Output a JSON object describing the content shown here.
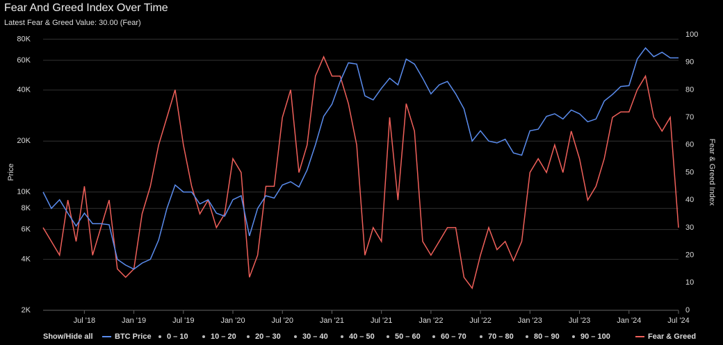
{
  "chart_data": {
    "type": "line",
    "title": "Fear And Greed Index Over Time",
    "subtitle": "Latest Fear & Greed Value: 30.00 (Fear)",
    "y_label": "Price",
    "y2_label": "Fear & Greed Index",
    "legend": {
      "toggle": "Show/Hide all",
      "ranges": [
        "0 – 10",
        "10 – 20",
        "20 – 30",
        "30 – 40",
        "40 – 50",
        "50 – 60",
        "60 – 70",
        "70 – 80",
        "80 – 90",
        "90 – 100"
      ]
    },
    "x": [
      "2018-02",
      "2018-03",
      "2018-04",
      "2018-05",
      "2018-06",
      "2018-07",
      "2018-08",
      "2018-09",
      "2018-10",
      "2018-11",
      "2018-12",
      "2019-01",
      "2019-02",
      "2019-03",
      "2019-04",
      "2019-05",
      "2019-06",
      "2019-07",
      "2019-08",
      "2019-09",
      "2019-10",
      "2019-11",
      "2019-12",
      "2020-01",
      "2020-02",
      "2020-03",
      "2020-04",
      "2020-05",
      "2020-06",
      "2020-07",
      "2020-08",
      "2020-09",
      "2020-10",
      "2020-11",
      "2020-12",
      "2021-01",
      "2021-02",
      "2021-03",
      "2021-04",
      "2021-05",
      "2021-06",
      "2021-07",
      "2021-08",
      "2021-09",
      "2021-10",
      "2021-11",
      "2021-12",
      "2022-01",
      "2022-02",
      "2022-03",
      "2022-04",
      "2022-05",
      "2022-06",
      "2022-07",
      "2022-08",
      "2022-09",
      "2022-10",
      "2022-11",
      "2022-12",
      "2023-01",
      "2023-02",
      "2023-03",
      "2023-04",
      "2023-05",
      "2023-06",
      "2023-07",
      "2023-08",
      "2023-09",
      "2023-10",
      "2023-11",
      "2023-12",
      "2024-01",
      "2024-02",
      "2024-03",
      "2024-04",
      "2024-05",
      "2024-06",
      "2024-07"
    ],
    "xlim": [
      "2018-02",
      "2024-07"
    ],
    "xticks": [
      {
        "value": "2018-07",
        "label": "Jul '18"
      },
      {
        "value": "2019-01",
        "label": "Jan '19"
      },
      {
        "value": "2019-07",
        "label": "Jul '19"
      },
      {
        "value": "2020-01",
        "label": "Jan '20"
      },
      {
        "value": "2020-07",
        "label": "Jul '20"
      },
      {
        "value": "2021-01",
        "label": "Jan '21"
      },
      {
        "value": "2021-07",
        "label": "Jul '21"
      },
      {
        "value": "2022-01",
        "label": "Jan '22"
      },
      {
        "value": "2022-07",
        "label": "Jul '22"
      },
      {
        "value": "2023-01",
        "label": "Jan '23"
      },
      {
        "value": "2023-07",
        "label": "Jul '23"
      },
      {
        "value": "2024-01",
        "label": "Jan '24"
      },
      {
        "value": "2024-07",
        "label": "Jul '24"
      }
    ],
    "ylim": [
      2000,
      85000
    ],
    "log_y": true,
    "yticks": [
      {
        "value": 2000,
        "label": "2K"
      },
      {
        "value": 4000,
        "label": "4K"
      },
      {
        "value": 6000,
        "label": "6K"
      },
      {
        "value": 8000,
        "label": "8K"
      },
      {
        "value": 10000,
        "label": "10K"
      },
      {
        "value": 20000,
        "label": "20K"
      },
      {
        "value": 40000,
        "label": "40K"
      },
      {
        "value": 60000,
        "label": "60K"
      },
      {
        "value": 80000,
        "label": "80K"
      }
    ],
    "y2lim": [
      0,
      100
    ],
    "y2ticks": [
      0,
      10,
      20,
      30,
      40,
      50,
      60,
      70,
      80,
      90,
      100
    ],
    "grid": true,
    "series": [
      {
        "name": "BTC Price",
        "color": "#5b8def",
        "values": [
          10000,
          8000,
          9000,
          7500,
          6300,
          7500,
          6500,
          6500,
          6400,
          4000,
          3700,
          3500,
          3800,
          4000,
          5200,
          8000,
          11000,
          10000,
          10000,
          8500,
          9000,
          7500,
          7200,
          9000,
          9500,
          5500,
          8000,
          9500,
          9200,
          11000,
          11500,
          10700,
          13500,
          19000,
          28000,
          33000,
          45000,
          58000,
          57000,
          37000,
          35000,
          41000,
          47000,
          43000,
          61000,
          57000,
          47000,
          38000,
          43000,
          45000,
          38000,
          31000,
          20000,
          23000,
          20000,
          19500,
          20500,
          17000,
          16500,
          23000,
          23500,
          28000,
          29000,
          27000,
          30500,
          29000,
          26000,
          27000,
          34500,
          37700,
          42000,
          42500,
          61000,
          71000,
          63000,
          67000,
          62000,
          62000
        ]
      },
      {
        "name": "Fear & Greed",
        "color": "#f0605a",
        "axis": "y2",
        "values": [
          30,
          25,
          20,
          40,
          25,
          45,
          20,
          30,
          40,
          15,
          12,
          15,
          35,
          45,
          60,
          70,
          80,
          60,
          45,
          35,
          40,
          30,
          35,
          55,
          50,
          12,
          20,
          45,
          45,
          70,
          80,
          50,
          60,
          85,
          92,
          85,
          85,
          75,
          60,
          20,
          30,
          25,
          70,
          40,
          75,
          65,
          25,
          20,
          25,
          30,
          30,
          12,
          8,
          20,
          30,
          22,
          25,
          18,
          25,
          50,
          55,
          50,
          60,
          50,
          65,
          55,
          40,
          45,
          55,
          70,
          72,
          72,
          80,
          85,
          70,
          65,
          70,
          30
        ]
      }
    ]
  }
}
